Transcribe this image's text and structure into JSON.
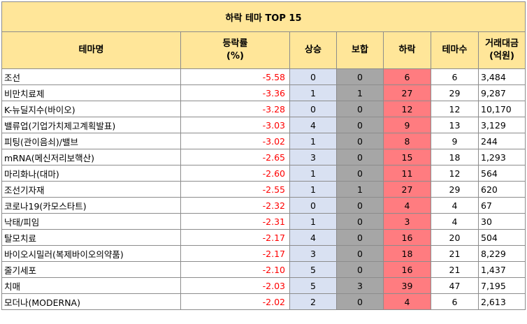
{
  "title": "하락 테마 TOP 15",
  "headers": {
    "name": "테마명",
    "rate_l1": "등락률",
    "rate_l2": "(%)",
    "up": "상승",
    "flat": "보합",
    "down": "하락",
    "count": "테마수",
    "vol_l1": "거래대금",
    "vol_l2": "(억원)"
  },
  "rows": [
    {
      "name": "조선",
      "rate": "-5.58",
      "up": "0",
      "flat": "0",
      "down": "6",
      "count": "6",
      "vol": "3,484"
    },
    {
      "name": "비만치료제",
      "rate": "-3.36",
      "up": "1",
      "flat": "1",
      "down": "27",
      "count": "29",
      "vol": "9,287"
    },
    {
      "name": "K-뉴딜지수(바이오)",
      "rate": "-3.28",
      "up": "0",
      "flat": "0",
      "down": "12",
      "count": "12",
      "vol": "10,170"
    },
    {
      "name": "밸류업(기업가치제고계획발표)",
      "rate": "-3.03",
      "up": "4",
      "flat": "0",
      "down": "9",
      "count": "13",
      "vol": "3,129"
    },
    {
      "name": "피팅(관이음쇠)/밸브",
      "rate": "-3.02",
      "up": "1",
      "flat": "0",
      "down": "8",
      "count": "9",
      "vol": "244"
    },
    {
      "name": "mRNA(메신저리보핵산)",
      "rate": "-2.65",
      "up": "3",
      "flat": "0",
      "down": "15",
      "count": "18",
      "vol": "1,293"
    },
    {
      "name": "마리화나(대마)",
      "rate": "-2.60",
      "up": "1",
      "flat": "0",
      "down": "11",
      "count": "12",
      "vol": "564"
    },
    {
      "name": "조선기자재",
      "rate": "-2.55",
      "up": "1",
      "flat": "1",
      "down": "27",
      "count": "29",
      "vol": "620"
    },
    {
      "name": "코로나19(카모스타트)",
      "rate": "-2.32",
      "up": "0",
      "flat": "0",
      "down": "4",
      "count": "4",
      "vol": "67"
    },
    {
      "name": "낙태/피임",
      "rate": "-2.31",
      "up": "1",
      "flat": "0",
      "down": "3",
      "count": "4",
      "vol": "30"
    },
    {
      "name": "탈모치료",
      "rate": "-2.17",
      "up": "4",
      "flat": "0",
      "down": "16",
      "count": "20",
      "vol": "504"
    },
    {
      "name": "바이오시밀러(복제바이오의약품)",
      "rate": "-2.17",
      "up": "3",
      "flat": "0",
      "down": "18",
      "count": "21",
      "vol": "8,229"
    },
    {
      "name": "줄기세포",
      "rate": "-2.10",
      "up": "5",
      "flat": "0",
      "down": "16",
      "count": "21",
      "vol": "1,437"
    },
    {
      "name": "치매",
      "rate": "-2.03",
      "up": "5",
      "flat": "3",
      "down": "39",
      "count": "47",
      "vol": "7,195"
    },
    {
      "name": "모더나(MODERNA)",
      "rate": "-2.02",
      "up": "2",
      "flat": "0",
      "down": "4",
      "count": "6",
      "vol": "2,613"
    }
  ]
}
